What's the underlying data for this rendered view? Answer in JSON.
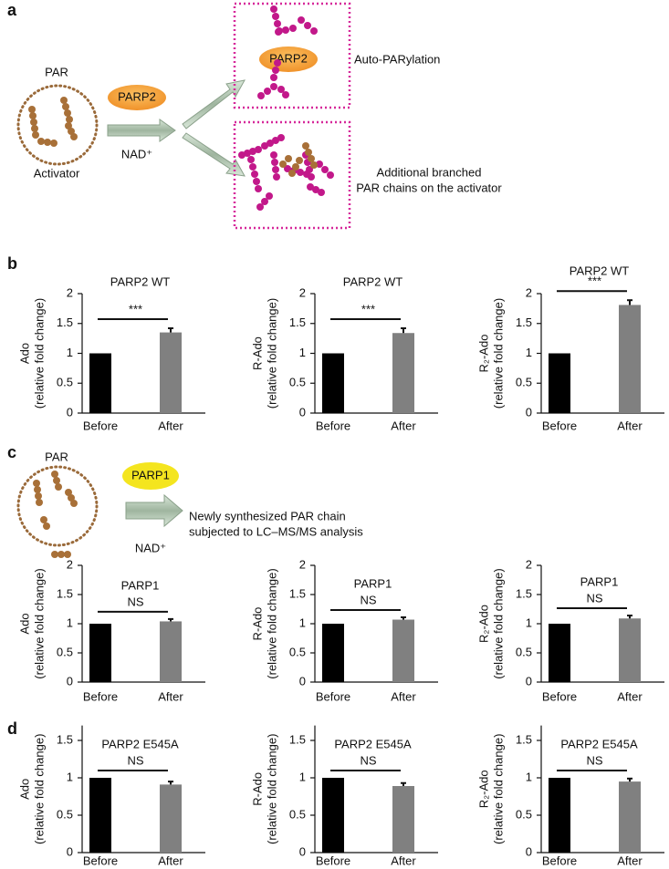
{
  "panels": [
    "a",
    "b",
    "c",
    "d"
  ],
  "diagram_a": {
    "pool_label": "PAR",
    "activator_label": "Activator",
    "enzyme": "PARP2",
    "cofactor": "NAD⁺",
    "top_enzyme": "PARP2",
    "top_label": "Auto-PARylation",
    "bottom_label": [
      "Additional branched",
      "PAR chains on the activator"
    ]
  },
  "diagram_c": {
    "pool_label": "PAR",
    "enzyme": "PARP1",
    "cofactor": "NAD⁺",
    "label": [
      "Newly synthesized PAR chain",
      "subjected to LC–MS/MS analysis"
    ]
  },
  "chart_data": [
    {
      "type": "bar",
      "title": "PARP2 WT",
      "ylabel": [
        "Ado",
        "(relative fold change)"
      ],
      "categories": [
        "Before",
        "After"
      ],
      "values": [
        1,
        1.35
      ],
      "errors": [
        null,
        0.07
      ],
      "colors": [
        "#000000",
        "#808080"
      ],
      "ylim": [
        0,
        2
      ],
      "yticks": [
        0,
        0.5,
        1,
        1.5,
        2
      ],
      "annotation": "***"
    },
    {
      "type": "bar",
      "title": "PARP2 WT",
      "ylabel": [
        "R-Ado",
        "(relative fold change)"
      ],
      "categories": [
        "Before",
        "After"
      ],
      "values": [
        1,
        1.34
      ],
      "errors": [
        null,
        0.08
      ],
      "colors": [
        "#000000",
        "#808080"
      ],
      "ylim": [
        0,
        2
      ],
      "yticks": [
        0,
        0.5,
        1,
        1.5,
        2
      ],
      "annotation": "***"
    },
    {
      "type": "bar",
      "title": "PARP2 WT",
      "ylabel": [
        "R₂-Ado",
        "(relative fold change)"
      ],
      "categories": [
        "Before",
        "After"
      ],
      "values": [
        1,
        1.81
      ],
      "errors": [
        null,
        0.08
      ],
      "colors": [
        "#000000",
        "#808080"
      ],
      "ylim": [
        0,
        2
      ],
      "yticks": [
        0,
        0.5,
        1,
        1.5,
        2
      ],
      "annotation": "***"
    },
    {
      "type": "bar",
      "title": "PARP1",
      "ylabel": [
        "Ado",
        "(relative fold change)"
      ],
      "categories": [
        "Before",
        "After"
      ],
      "values": [
        1,
        1.04
      ],
      "errors": [
        null,
        0.04
      ],
      "colors": [
        "#000000",
        "#808080"
      ],
      "ylim": [
        0,
        2
      ],
      "yticks": [
        0,
        0.5,
        1,
        1.5,
        2
      ],
      "annotation": "NS"
    },
    {
      "type": "bar",
      "title": "PARP1",
      "ylabel": [
        "R-Ado",
        "(relative fold change)"
      ],
      "categories": [
        "Before",
        "After"
      ],
      "values": [
        1,
        1.07
      ],
      "errors": [
        null,
        0.04
      ],
      "colors": [
        "#000000",
        "#808080"
      ],
      "ylim": [
        0,
        2
      ],
      "yticks": [
        0,
        0.5,
        1,
        1.5,
        2
      ],
      "annotation": "NS"
    },
    {
      "type": "bar",
      "title": "PARP1",
      "ylabel": [
        "R₂-Ado",
        "(relative fold change)"
      ],
      "categories": [
        "Before",
        "After"
      ],
      "values": [
        1,
        1.09
      ],
      "errors": [
        null,
        0.05
      ],
      "colors": [
        "#000000",
        "#808080"
      ],
      "ylim": [
        0,
        2
      ],
      "yticks": [
        0,
        0.5,
        1,
        1.5,
        2
      ],
      "annotation": "NS"
    },
    {
      "type": "bar",
      "title": "PARP2 E545A",
      "ylabel": [
        "Ado",
        "(relative fold change)"
      ],
      "categories": [
        "Before",
        "After"
      ],
      "values": [
        1,
        0.91
      ],
      "errors": [
        null,
        0.04
      ],
      "colors": [
        "#000000",
        "#808080"
      ],
      "ylim": [
        0,
        1.7
      ],
      "yticks": [
        0,
        0.5,
        1,
        1.5
      ],
      "annotation": "NS"
    },
    {
      "type": "bar",
      "title": "PARP2 E545A",
      "ylabel": [
        "R-Ado",
        "(relative fold change)"
      ],
      "categories": [
        "Before",
        "After"
      ],
      "values": [
        1,
        0.89
      ],
      "errors": [
        null,
        0.04
      ],
      "colors": [
        "#000000",
        "#808080"
      ],
      "ylim": [
        0,
        1.7
      ],
      "yticks": [
        0,
        0.5,
        1,
        1.5
      ],
      "annotation": "NS"
    },
    {
      "type": "bar",
      "title": "PARP2 E545A",
      "ylabel": [
        "R₂-Ado",
        "(relative fold change)"
      ],
      "categories": [
        "Before",
        "After"
      ],
      "values": [
        1,
        0.95
      ],
      "errors": [
        null,
        0.04
      ],
      "colors": [
        "#000000",
        "#808080"
      ],
      "ylim": [
        0,
        1.7
      ],
      "yticks": [
        0,
        0.5,
        1,
        1.5
      ],
      "annotation": "NS"
    }
  ]
}
